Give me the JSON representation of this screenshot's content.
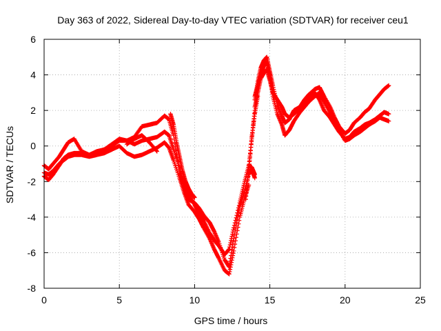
{
  "chart_data": {
    "type": "scatter",
    "title": "Day 363 of 2022, Sidereal Day-to-day VTEC variation (SDTVAR) for receiver ceu1",
    "xlabel": "GPS time / hours",
    "ylabel": "SDTVAR / TECUs",
    "xlim": [
      0,
      25
    ],
    "ylim": [
      -8,
      6
    ],
    "xticks": [
      0,
      5,
      10,
      15,
      20,
      25
    ],
    "yticks": [
      -8,
      -6,
      -4,
      -2,
      0,
      2,
      4,
      6
    ],
    "grid": true,
    "marker": "+",
    "colors": {
      "series": "#ff0000"
    },
    "series": [
      {
        "x": [
          0.0,
          0.3,
          0.6,
          1.0,
          1.3,
          1.6,
          2.0,
          2.5,
          3.0,
          3.5,
          4.0,
          4.5,
          5.0,
          5.5,
          6.0,
          6.5,
          7.0,
          7.5,
          8.0,
          8.3,
          8.6,
          9.0,
          9.3,
          9.6,
          10.0,
          10.3,
          10.6,
          11.0,
          11.3,
          11.6,
          12.0,
          12.3,
          12.6,
          13.0,
          13.3,
          13.6,
          13.8,
          14.0
        ],
        "y": [
          -1.7,
          -1.9,
          -1.6,
          -1.1,
          -0.7,
          -0.5,
          -0.4,
          -0.4,
          -0.5,
          -0.3,
          -0.2,
          0.0,
          0.3,
          0.3,
          0.1,
          0.3,
          0.4,
          0.5,
          0.8,
          0.6,
          -0.2,
          -1.2,
          -2.3,
          -3.0,
          -3.2,
          -3.5,
          -3.9,
          -4.3,
          -4.8,
          -5.4,
          -6.4,
          -6.8,
          -5.2,
          -3.4,
          -2.6,
          -1.6,
          -1.3,
          -1.8
        ]
      },
      {
        "x": [
          0.0,
          0.3,
          0.6,
          1.0,
          1.3,
          1.6,
          2.0,
          2.5,
          3.0,
          3.5,
          4.0,
          4.5,
          5.0,
          5.5,
          6.0,
          6.5,
          7.0,
          7.5,
          8.0,
          8.3,
          8.6,
          9.0,
          9.3,
          9.6,
          10.0,
          10.3,
          10.6,
          11.0,
          11.3,
          11.6,
          12.0,
          12.3,
          12.6,
          13.0,
          13.3,
          13.6,
          13.8,
          14.0
        ],
        "y": [
          -1.1,
          -1.3,
          -1.0,
          -0.6,
          -0.2,
          0.2,
          0.4,
          -0.3,
          -0.5,
          -0.4,
          -0.2,
          0.1,
          0.4,
          0.3,
          0.5,
          1.1,
          1.2,
          1.3,
          1.7,
          1.5,
          0.6,
          -1.5,
          -2.2,
          -2.7,
          -3.3,
          -3.8,
          -4.2,
          -4.9,
          -5.3,
          -5.6,
          -6.1,
          -5.8,
          -4.6,
          -3.2,
          -2.1,
          -1.1,
          -1.2,
          -1.6
        ]
      },
      {
        "x": [
          0.0,
          0.3,
          0.6,
          1.0,
          1.3,
          1.6,
          2.0,
          2.5,
          3.0,
          3.5,
          4.0,
          4.5,
          5.0,
          5.5,
          6.0,
          6.5,
          7.0,
          7.5,
          8.0,
          8.3,
          8.6,
          9.0,
          9.3,
          9.6,
          10.0,
          10.3,
          10.6,
          11.0,
          11.3,
          11.6,
          12.0,
          12.3,
          12.6,
          13.0,
          13.3,
          13.6
        ],
        "y": [
          -1.5,
          -1.6,
          -1.4,
          -1.0,
          -0.8,
          -0.6,
          -0.5,
          -0.5,
          -0.6,
          -0.5,
          -0.4,
          -0.2,
          0.0,
          -0.4,
          -0.6,
          -0.5,
          -0.3,
          -0.1,
          0.2,
          -0.1,
          -0.8,
          -1.8,
          -2.6,
          -3.3,
          -3.7,
          -4.1,
          -4.6,
          -5.2,
          -5.8,
          -6.3,
          -7.0,
          -7.2,
          -5.9,
          -4.0,
          -3.0,
          -2.2
        ]
      },
      {
        "x": [
          14.0,
          14.2,
          14.4,
          14.6,
          14.8,
          15.0,
          15.2,
          15.5,
          15.8,
          16.0,
          16.3,
          16.6,
          17.0,
          17.3,
          17.6,
          18.0,
          18.3,
          18.6,
          19.0,
          19.3,
          19.6,
          20.0,
          20.3,
          20.6,
          21.0,
          21.3,
          21.6,
          22.0,
          22.3,
          22.6,
          22.9
        ],
        "y": [
          2.6,
          3.6,
          4.4,
          4.8,
          5.0,
          4.2,
          3.4,
          2.3,
          1.7,
          1.3,
          1.5,
          2.0,
          2.2,
          2.6,
          2.9,
          3.2,
          3.3,
          2.8,
          2.2,
          1.6,
          1.1,
          0.7,
          0.9,
          1.3,
          1.6,
          1.9,
          2.1,
          2.6,
          2.9,
          3.2,
          3.4
        ]
      },
      {
        "x": [
          14.0,
          14.2,
          14.4,
          14.6,
          14.8,
          15.0,
          15.2,
          15.5,
          15.8,
          16.0,
          16.3,
          16.6,
          17.0,
          17.3,
          17.6,
          18.0,
          18.3,
          18.6,
          19.0,
          19.3,
          19.6,
          20.0,
          20.3,
          20.6,
          21.0,
          21.3,
          21.6,
          22.0,
          22.3,
          22.6,
          22.9
        ],
        "y": [
          2.2,
          3.0,
          3.8,
          4.1,
          4.3,
          3.7,
          3.0,
          2.6,
          2.2,
          1.8,
          1.6,
          1.8,
          2.1,
          2.4,
          2.7,
          3.0,
          2.6,
          2.0,
          1.6,
          1.2,
          0.8,
          0.4,
          0.5,
          0.8,
          1.0,
          1.2,
          1.3,
          1.5,
          1.7,
          1.9,
          1.8
        ]
      },
      {
        "x": [
          14.0,
          14.2,
          14.4,
          14.6,
          14.8,
          15.0,
          15.2,
          15.5,
          15.8,
          16.0,
          16.3,
          16.6,
          17.0,
          17.3,
          17.6,
          18.0,
          18.3,
          18.6,
          19.0,
          19.3,
          19.6,
          20.0,
          20.3,
          20.6,
          21.0,
          21.3,
          21.6,
          22.0,
          22.3,
          22.6,
          22.9
        ],
        "y": [
          2.8,
          3.4,
          4.0,
          4.5,
          4.7,
          4.0,
          2.8,
          1.8,
          1.2,
          0.6,
          0.9,
          1.4,
          1.9,
          2.2,
          2.5,
          2.8,
          3.0,
          2.5,
          1.9,
          1.4,
          0.9,
          0.3,
          0.4,
          0.6,
          0.8,
          1.0,
          1.2,
          1.4,
          1.6,
          1.5,
          1.4
        ]
      },
      {
        "x": [
          8.4,
          8.6,
          8.8,
          9.0,
          9.2,
          9.4,
          9.6,
          9.8,
          10.0
        ],
        "y": [
          1.8,
          1.2,
          0.2,
          -0.6,
          -1.4,
          -2.0,
          -2.4,
          -2.7,
          -2.9
        ]
      },
      {
        "x": [
          13.6,
          13.8,
          14.0,
          14.2
        ],
        "y": [
          -1.4,
          0.5,
          1.8,
          2.8
        ]
      },
      {
        "x": [
          13.4,
          13.6,
          13.8,
          14.0
        ],
        "y": [
          -3.0,
          -1.2,
          0.4,
          2.0
        ]
      },
      {
        "x": [
          5.5,
          6.0,
          6.5,
          7.0,
          7.5
        ],
        "y": [
          0.1,
          0.4,
          0.6,
          0.2,
          -0.3
        ]
      }
    ]
  }
}
